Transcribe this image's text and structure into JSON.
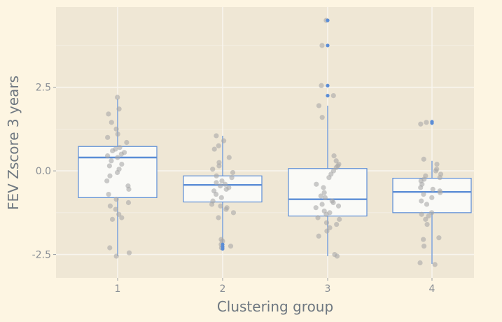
{
  "chart_data": {
    "type": "box",
    "title": "",
    "xlabel": "Clustering group",
    "ylabel": "FEV Zscore 3 years",
    "categories": [
      "1",
      "2",
      "3",
      "4"
    ],
    "ylim": [
      -3.2,
      4.9
    ],
    "yticks": [
      -2.5,
      0.0,
      2.5
    ],
    "ytick_labels": [
      "-2.5",
      "0.0",
      "2.5"
    ],
    "grid": true,
    "legend": "none",
    "boxes": [
      {
        "group": "1",
        "q1": -0.8,
        "median": 0.4,
        "q3": 0.73,
        "whisker_low": -2.55,
        "whisker_high": 2.15,
        "outliers": []
      },
      {
        "group": "2",
        "q1": -0.93,
        "median": -0.42,
        "q3": -0.15,
        "whisker_low": -2.15,
        "whisker_high": 1.05,
        "outliers": [
          -2.2,
          -2.27,
          -2.33
        ]
      },
      {
        "group": "3",
        "q1": -1.35,
        "median": -0.85,
        "q3": 0.07,
        "whisker_low": -2.55,
        "whisker_high": 1.95,
        "outliers": [
          2.25,
          2.55,
          3.75,
          4.5
        ]
      },
      {
        "group": "4",
        "q1": -1.25,
        "median": -0.63,
        "q3": -0.22,
        "whisker_low": -2.78,
        "whisker_high": 0.3,
        "outliers": [
          1.43,
          1.47
        ]
      }
    ],
    "points": [
      {
        "group": "1",
        "values": [
          2.2,
          1.85,
          1.7,
          1.45,
          1.25,
          1.1,
          1.0,
          0.85,
          0.7,
          0.65,
          0.6,
          0.55,
          0.5,
          0.45,
          0.4,
          0.3,
          0.2,
          0.15,
          0.05,
          -0.05,
          -0.15,
          -0.3,
          -0.45,
          -0.55,
          -0.7,
          -0.85,
          -0.95,
          -1.05,
          -1.15,
          -1.3,
          -1.4,
          -1.45,
          -2.3,
          -2.45,
          -2.55
        ]
      },
      {
        "group": "2",
        "values": [
          1.05,
          0.9,
          0.75,
          0.65,
          0.4,
          0.25,
          0.15,
          0.05,
          -0.05,
          -0.15,
          -0.2,
          -0.3,
          -0.35,
          -0.4,
          -0.45,
          -0.5,
          -0.55,
          -0.6,
          -0.7,
          -0.8,
          -0.9,
          -1.0,
          -1.05,
          -1.1,
          -1.15,
          -1.25,
          -1.4,
          -2.05,
          -2.1,
          -2.2,
          -2.25,
          -2.3
        ]
      },
      {
        "group": "3",
        "values": [
          4.5,
          3.75,
          2.55,
          2.25,
          1.95,
          1.6,
          0.45,
          0.3,
          0.2,
          0.15,
          0.1,
          0.0,
          -0.1,
          -0.2,
          -0.4,
          -0.5,
          -0.65,
          -0.75,
          -0.8,
          -0.9,
          -0.95,
          -1.0,
          -1.05,
          -1.1,
          -1.2,
          -1.25,
          -1.3,
          -1.4,
          -1.45,
          -1.55,
          -1.6,
          -1.7,
          -1.8,
          -1.95,
          -2.5,
          -2.55
        ]
      },
      {
        "group": "4",
        "values": [
          1.45,
          1.4,
          0.35,
          0.2,
          0.05,
          0.0,
          -0.1,
          -0.15,
          -0.2,
          -0.25,
          -0.3,
          -0.4,
          -0.5,
          -0.55,
          -0.6,
          -0.65,
          -0.7,
          -0.8,
          -0.9,
          -1.0,
          -1.25,
          -1.3,
          -1.35,
          -1.45,
          -1.6,
          -2.0,
          -2.05,
          -2.25,
          -2.75,
          -2.8
        ]
      }
    ]
  },
  "colors": {
    "background": "#fdf5e2",
    "panel": "#efe7d5",
    "grid": "#f8f5ee",
    "box_fill": "#fafaf7",
    "box_line": "#5b8dd6",
    "point": "#a8a8a8",
    "outlier": "#5b8dd6",
    "tick_text": "#8a8f96",
    "axis_title": "#6e7780"
  }
}
